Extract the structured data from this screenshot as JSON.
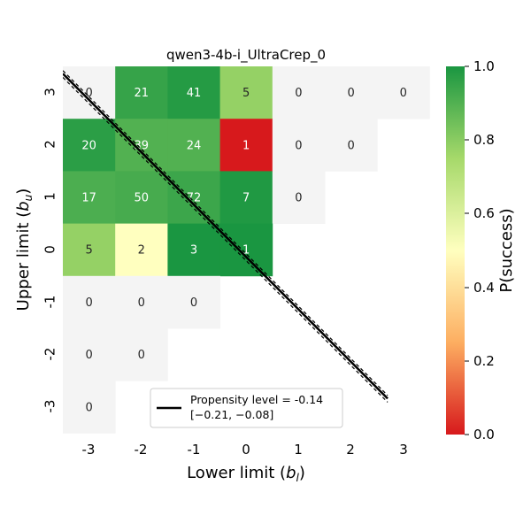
{
  "chart_data": {
    "type": "heatmap",
    "title": "qwen3-4b-i_UltraCrep_0",
    "xlabel_main": "Lower limit (",
    "xlabel_sym": "b",
    "xlabel_sub": "l",
    "xlabel_end": ")",
    "ylabel_main": "Upper limit (",
    "ylabel_sym": "b",
    "ylabel_sub": "u",
    "ylabel_end": ")",
    "x_ticks": [
      "-3",
      "-2",
      "-1",
      "0",
      "1",
      "2",
      "3"
    ],
    "y_ticks": [
      "3",
      "2",
      "1",
      "0",
      "-1",
      "-2",
      "-3"
    ],
    "cells": [
      {
        "x": -3,
        "y": 3,
        "count": "0",
        "p": null
      },
      {
        "x": -2,
        "y": 3,
        "count": "21",
        "p": 0.95
      },
      {
        "x": -1,
        "y": 3,
        "count": "41",
        "p": 0.98
      },
      {
        "x": 0,
        "y": 3,
        "count": "5",
        "p": 0.78
      },
      {
        "x": 1,
        "y": 3,
        "count": "0",
        "p": null
      },
      {
        "x": 2,
        "y": 3,
        "count": "0",
        "p": null
      },
      {
        "x": 3,
        "y": 3,
        "count": "0",
        "p": null
      },
      {
        "x": -3,
        "y": 2,
        "count": "20",
        "p": 0.97
      },
      {
        "x": -2,
        "y": 2,
        "count": "39",
        "p": 0.9
      },
      {
        "x": -1,
        "y": 2,
        "count": "24",
        "p": 0.9
      },
      {
        "x": 0,
        "y": 2,
        "count": "1",
        "p": 0.0
      },
      {
        "x": 1,
        "y": 2,
        "count": "0",
        "p": null
      },
      {
        "x": 2,
        "y": 2,
        "count": "0",
        "p": null
      },
      {
        "x": -3,
        "y": 1,
        "count": "17",
        "p": 0.91
      },
      {
        "x": -2,
        "y": 1,
        "count": "50",
        "p": 0.92
      },
      {
        "x": -1,
        "y": 1,
        "count": "72",
        "p": 0.94
      },
      {
        "x": 0,
        "y": 1,
        "count": "7",
        "p": 0.99
      },
      {
        "x": 1,
        "y": 1,
        "count": "0",
        "p": null
      },
      {
        "x": -3,
        "y": 0,
        "count": "5",
        "p": 0.78
      },
      {
        "x": -2,
        "y": 0,
        "count": "2",
        "p": 0.5
      },
      {
        "x": -1,
        "y": 0,
        "count": "3",
        "p": 1.0
      },
      {
        "x": 0,
        "y": 0,
        "count": "1",
        "p": 1.0
      },
      {
        "x": -3,
        "y": -1,
        "count": "0",
        "p": null
      },
      {
        "x": -2,
        "y": -1,
        "count": "0",
        "p": null
      },
      {
        "x": -1,
        "y": -1,
        "count": "0",
        "p": null
      },
      {
        "x": -3,
        "y": -2,
        "count": "0",
        "p": null
      },
      {
        "x": -2,
        "y": -2,
        "count": "0",
        "p": null
      },
      {
        "x": -3,
        "y": -3,
        "count": "0",
        "p": null
      }
    ],
    "propensity_line": {
      "slope": -1,
      "intercept": -0.14,
      "ci": [
        -0.21,
        -0.08
      ],
      "x_range": [
        -3.5,
        2.7
      ]
    },
    "legend": {
      "label": "Propensity level = -0.14",
      "ci_label": "[−0.21, −0.08]",
      "position": "lower-center"
    },
    "colorbar": {
      "label": "P(success)",
      "ticks": [
        "0.0",
        "0.2",
        "0.4",
        "0.6",
        "0.8",
        "1.0"
      ],
      "range": [
        0,
        1
      ],
      "colors": [
        "#d7191c",
        "#fdae61",
        "#ffffbf",
        "#a6d96a",
        "#1a9641"
      ]
    },
    "empty_color": "#f4f4f4"
  }
}
